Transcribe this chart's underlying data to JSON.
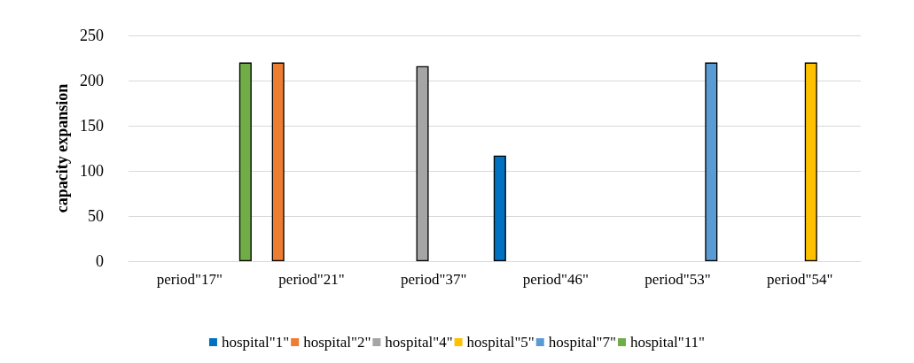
{
  "chart_data": {
    "type": "bar",
    "ylabel": "capacity expansion",
    "categories": [
      "period\"17\"",
      "period\"21\"",
      "period\"37\"",
      "period\"46\"",
      "period\"53\"",
      "period\"54\""
    ],
    "series": [
      {
        "name": "hospital\"1\"",
        "color": "#0070c0",
        "values": [
          0,
          0,
          0,
          117,
          0,
          0
        ]
      },
      {
        "name": "hospital\"2\"",
        "color": "#ed7d31",
        "values": [
          0,
          220,
          0,
          0,
          0,
          0
        ]
      },
      {
        "name": "hospital\"4\"",
        "color": "#a5a5a5",
        "values": [
          0,
          0,
          216,
          0,
          0,
          0
        ]
      },
      {
        "name": "hospital\"5\"",
        "color": "#ffc000",
        "values": [
          0,
          0,
          0,
          0,
          0,
          220
        ]
      },
      {
        "name": "hospital\"7\"",
        "color": "#5b9bd5",
        "values": [
          0,
          0,
          0,
          0,
          220,
          0
        ]
      },
      {
        "name": "hospital\"11\"",
        "color": "#70ad47",
        "values": [
          220,
          0,
          0,
          0,
          0,
          0
        ]
      }
    ],
    "ylim": [
      0,
      250
    ],
    "yticks": [
      0,
      50,
      100,
      150,
      200,
      250
    ],
    "grid": "y",
    "legend": "bottom"
  }
}
